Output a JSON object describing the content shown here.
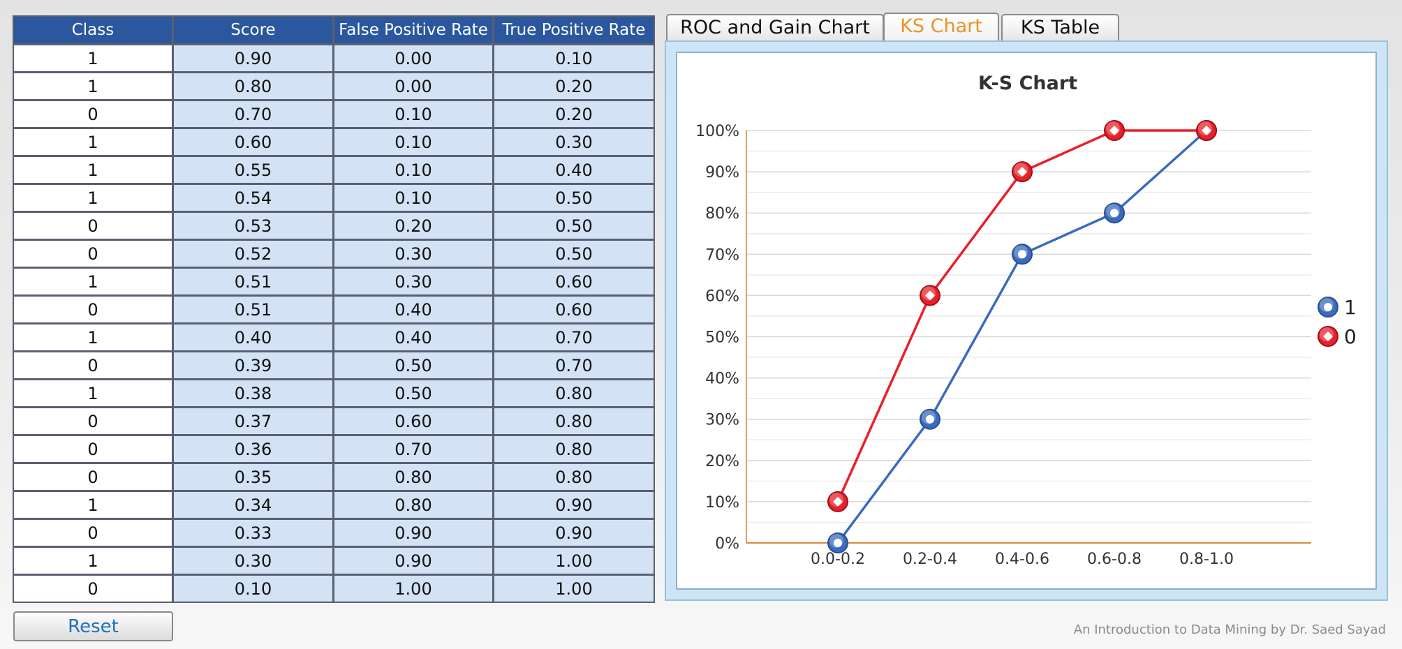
{
  "table": {
    "headers": [
      "Class",
      "Score",
      "False Positive Rate",
      "True Positive Rate"
    ],
    "rows": [
      [
        "1",
        "0.90",
        "0.00",
        "0.10"
      ],
      [
        "1",
        "0.80",
        "0.00",
        "0.20"
      ],
      [
        "0",
        "0.70",
        "0.10",
        "0.20"
      ],
      [
        "1",
        "0.60",
        "0.10",
        "0.30"
      ],
      [
        "1",
        "0.55",
        "0.10",
        "0.40"
      ],
      [
        "1",
        "0.54",
        "0.10",
        "0.50"
      ],
      [
        "0",
        "0.53",
        "0.20",
        "0.50"
      ],
      [
        "0",
        "0.52",
        "0.30",
        "0.50"
      ],
      [
        "1",
        "0.51",
        "0.30",
        "0.60"
      ],
      [
        "0",
        "0.51",
        "0.40",
        "0.60"
      ],
      [
        "1",
        "0.40",
        "0.40",
        "0.70"
      ],
      [
        "0",
        "0.39",
        "0.50",
        "0.70"
      ],
      [
        "1",
        "0.38",
        "0.50",
        "0.80"
      ],
      [
        "0",
        "0.37",
        "0.60",
        "0.80"
      ],
      [
        "0",
        "0.36",
        "0.70",
        "0.80"
      ],
      [
        "0",
        "0.35",
        "0.80",
        "0.80"
      ],
      [
        "1",
        "0.34",
        "0.80",
        "0.90"
      ],
      [
        "0",
        "0.33",
        "0.90",
        "0.90"
      ],
      [
        "1",
        "0.30",
        "0.90",
        "1.00"
      ],
      [
        "0",
        "0.10",
        "1.00",
        "1.00"
      ]
    ]
  },
  "buttons": {
    "reset": "Reset"
  },
  "footer": {
    "credit": "An Introduction to Data Mining by Dr. Saed Sayad"
  },
  "tabs": [
    {
      "label": "ROC and Gain Chart",
      "active": false
    },
    {
      "label": "KS Chart",
      "active": true
    },
    {
      "label": "KS Table",
      "active": false
    }
  ],
  "colors": {
    "header_bg": "#2a579e",
    "cell_bg": "#d4e2f6",
    "active_tab": "#e8942a",
    "series_1": "#3a6bbd",
    "series_0": "#e8202a"
  },
  "chart_data": {
    "type": "line",
    "title": "K-S Chart",
    "xlabel": "",
    "ylabel": "",
    "categories": [
      "0.0-0.2",
      "0.2-0.4",
      "0.4-0.6",
      "0.6-0.8",
      "0.8-1.0"
    ],
    "yticks": [
      "0%",
      "10%",
      "20%",
      "30%",
      "40%",
      "50%",
      "60%",
      "70%",
      "80%",
      "90%",
      "100%"
    ],
    "ylim": [
      0,
      100
    ],
    "grid": true,
    "legend_position": "right",
    "series": [
      {
        "name": "1",
        "values": [
          0,
          30,
          70,
          80,
          100
        ],
        "color": "#3a6bbd",
        "marker": "circle"
      },
      {
        "name": "0",
        "values": [
          10,
          60,
          90,
          100,
          100
        ],
        "color": "#e8202a",
        "marker": "diamond"
      }
    ]
  }
}
